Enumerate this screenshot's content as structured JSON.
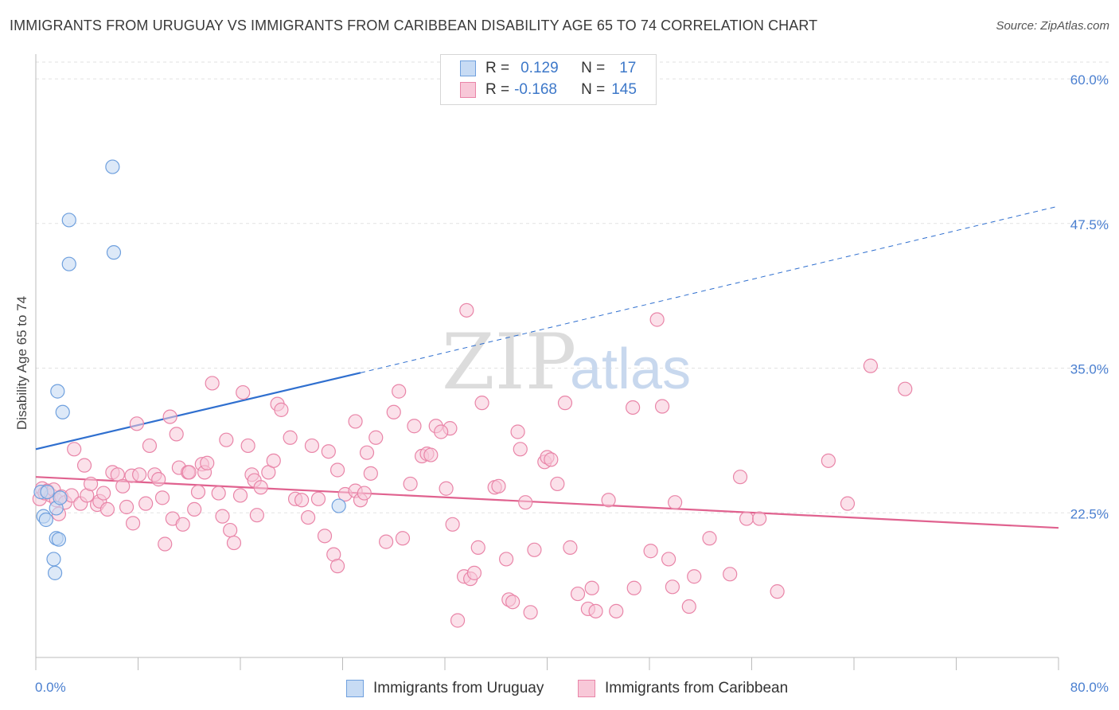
{
  "header": {
    "title": "IMMIGRANTS FROM URUGUAY VS IMMIGRANTS FROM CARIBBEAN DISABILITY AGE 65 TO 74 CORRELATION CHART",
    "source": "Source: ZipAtlas.com"
  },
  "watermark": {
    "zip": "ZIP",
    "atlas": "atlas"
  },
  "colors": {
    "blue": "#6fa0de",
    "blue_fill": "#c7dbf4",
    "blue_line": "#2f6fcf",
    "pink": "#e985a8",
    "pink_fill": "#f8c8d8",
    "pink_line": "#e0628f",
    "axis_text": "#4a7fd0",
    "grid": "#e2e2e2"
  },
  "legend": {
    "rows": [
      {
        "r_label": "R =",
        "r_value": "0.129",
        "n_label": "N =",
        "n_value": "17"
      },
      {
        "r_label": "R =",
        "r_value": "-0.168",
        "n_label": "N =",
        "n_value": "145"
      }
    ]
  },
  "bottom_legend": {
    "series1": "Immigrants from Uruguay",
    "series2": "Immigrants from Caribbean"
  },
  "chart_data": {
    "type": "scatter",
    "title": "IMMIGRANTS FROM URUGUAY VS IMMIGRANTS FROM CARIBBEAN DISABILITY AGE 65 TO 74 CORRELATION CHART",
    "xlabel": "",
    "ylabel": "Disability Age 65 to 74",
    "xlim": [
      0,
      80
    ],
    "ylim": [
      10,
      62
    ],
    "x_tick_labels": [
      "0.0%",
      "80.0%"
    ],
    "y_ticks": [
      22.5,
      35.0,
      47.5,
      60.0
    ],
    "y_tick_labels": [
      "22.5%",
      "35.0%",
      "47.5%",
      "60.0%"
    ],
    "grid": true,
    "series": [
      {
        "name": "Immigrants from Uruguay",
        "color": "#6fa0de",
        "points": [
          [
            0.4,
            24.3
          ],
          [
            0.6,
            22.2
          ],
          [
            0.8,
            21.9
          ],
          [
            0.9,
            24.3
          ],
          [
            1.4,
            18.5
          ],
          [
            1.5,
            17.3
          ],
          [
            1.6,
            22.9
          ],
          [
            1.6,
            20.3
          ],
          [
            1.7,
            33.0
          ],
          [
            1.8,
            20.2
          ],
          [
            1.9,
            23.8
          ],
          [
            2.1,
            31.2
          ],
          [
            2.6,
            47.8
          ],
          [
            2.6,
            44.0
          ],
          [
            6.0,
            52.4
          ],
          [
            6.1,
            45.0
          ],
          [
            23.7,
            23.1
          ]
        ],
        "trend": {
          "x": [
            0.0,
            25.4
          ],
          "y": [
            28.0,
            34.6
          ],
          "dashed_to": [
            80.0,
            49.0
          ]
        }
      },
      {
        "name": "Immigrants from Caribbean",
        "color": "#e985a8",
        "points": [
          [
            0.3,
            23.7
          ],
          [
            0.5,
            24.6
          ],
          [
            0.7,
            24.2
          ],
          [
            0.9,
            24.4
          ],
          [
            1.2,
            24.0
          ],
          [
            1.4,
            24.5
          ],
          [
            1.6,
            23.6
          ],
          [
            1.8,
            22.4
          ],
          [
            2.0,
            23.9
          ],
          [
            2.3,
            23.4
          ],
          [
            2.8,
            24.0
          ],
          [
            3.0,
            28.0
          ],
          [
            3.5,
            23.3
          ],
          [
            3.8,
            26.6
          ],
          [
            4.0,
            24.0
          ],
          [
            4.3,
            25.0
          ],
          [
            4.8,
            23.2
          ],
          [
            5.0,
            23.5
          ],
          [
            5.3,
            24.2
          ],
          [
            5.6,
            22.8
          ],
          [
            6.0,
            26.0
          ],
          [
            6.4,
            25.8
          ],
          [
            6.8,
            24.8
          ],
          [
            7.1,
            23.0
          ],
          [
            7.5,
            25.7
          ],
          [
            7.6,
            21.6
          ],
          [
            7.9,
            30.2
          ],
          [
            8.1,
            25.8
          ],
          [
            8.6,
            23.3
          ],
          [
            8.9,
            28.3
          ],
          [
            9.3,
            25.8
          ],
          [
            9.6,
            25.4
          ],
          [
            9.9,
            23.8
          ],
          [
            10.1,
            19.8
          ],
          [
            10.5,
            30.8
          ],
          [
            10.7,
            22.0
          ],
          [
            11.0,
            29.3
          ],
          [
            11.2,
            26.4
          ],
          [
            11.5,
            21.5
          ],
          [
            11.9,
            26.0
          ],
          [
            12.0,
            26.0
          ],
          [
            12.4,
            22.8
          ],
          [
            12.7,
            24.3
          ],
          [
            13.0,
            26.7
          ],
          [
            13.2,
            26.0
          ],
          [
            13.4,
            26.8
          ],
          [
            13.8,
            33.7
          ],
          [
            14.3,
            24.2
          ],
          [
            14.6,
            22.2
          ],
          [
            14.9,
            28.8
          ],
          [
            15.2,
            21.0
          ],
          [
            15.5,
            19.9
          ],
          [
            16.0,
            24.0
          ],
          [
            16.2,
            32.9
          ],
          [
            16.6,
            28.3
          ],
          [
            16.9,
            25.8
          ],
          [
            17.1,
            25.3
          ],
          [
            17.3,
            22.3
          ],
          [
            17.6,
            24.7
          ],
          [
            18.2,
            26.0
          ],
          [
            18.6,
            27.0
          ],
          [
            18.9,
            31.9
          ],
          [
            19.2,
            31.4
          ],
          [
            19.9,
            29.0
          ],
          [
            20.3,
            23.7
          ],
          [
            20.8,
            23.6
          ],
          [
            21.3,
            22.1
          ],
          [
            21.6,
            28.3
          ],
          [
            22.1,
            23.7
          ],
          [
            22.6,
            20.5
          ],
          [
            22.9,
            27.8
          ],
          [
            23.3,
            18.9
          ],
          [
            23.6,
            26.2
          ],
          [
            23.6,
            17.9
          ],
          [
            24.2,
            24.1
          ],
          [
            25.0,
            24.4
          ],
          [
            25.0,
            30.4
          ],
          [
            25.4,
            23.6
          ],
          [
            25.7,
            24.2
          ],
          [
            25.9,
            27.7
          ],
          [
            26.2,
            25.9
          ],
          [
            26.6,
            29.0
          ],
          [
            27.4,
            20.0
          ],
          [
            28.0,
            31.2
          ],
          [
            28.4,
            33.0
          ],
          [
            28.7,
            20.3
          ],
          [
            29.3,
            25.0
          ],
          [
            29.6,
            30.0
          ],
          [
            30.2,
            27.4
          ],
          [
            30.6,
            27.6
          ],
          [
            30.9,
            27.5
          ],
          [
            31.3,
            30.0
          ],
          [
            32.1,
            24.6
          ],
          [
            32.4,
            29.8
          ],
          [
            32.6,
            21.5
          ],
          [
            33.0,
            13.2
          ],
          [
            33.5,
            17.0
          ],
          [
            34.0,
            16.8
          ],
          [
            34.3,
            17.3
          ],
          [
            34.6,
            19.5
          ],
          [
            34.9,
            32.0
          ],
          [
            35.9,
            24.7
          ],
          [
            36.2,
            24.8
          ],
          [
            36.8,
            18.5
          ],
          [
            37.0,
            15.0
          ],
          [
            37.3,
            14.8
          ],
          [
            37.7,
            29.5
          ],
          [
            37.9,
            28.0
          ],
          [
            38.3,
            23.4
          ],
          [
            38.7,
            13.9
          ],
          [
            39.0,
            19.3
          ],
          [
            39.8,
            26.9
          ],
          [
            40.0,
            27.3
          ],
          [
            40.3,
            27.1
          ],
          [
            40.8,
            25.0
          ],
          [
            41.4,
            32.0
          ],
          [
            41.8,
            19.5
          ],
          [
            42.4,
            15.5
          ],
          [
            43.2,
            14.2
          ],
          [
            43.5,
            16.0
          ],
          [
            43.8,
            14.0
          ],
          [
            44.8,
            23.6
          ],
          [
            45.4,
            14.0
          ],
          [
            46.7,
            31.6
          ],
          [
            46.8,
            16.0
          ],
          [
            48.1,
            19.2
          ],
          [
            48.6,
            39.2
          ],
          [
            49.0,
            31.7
          ],
          [
            49.5,
            18.5
          ],
          [
            49.8,
            16.1
          ],
          [
            50.0,
            23.4
          ],
          [
            51.1,
            14.4
          ],
          [
            51.5,
            17.0
          ],
          [
            52.7,
            20.3
          ],
          [
            54.3,
            17.2
          ],
          [
            55.1,
            25.6
          ],
          [
            55.6,
            22.0
          ],
          [
            56.6,
            22.0
          ],
          [
            58.0,
            15.7
          ],
          [
            62.0,
            27.0
          ],
          [
            63.5,
            23.3
          ],
          [
            65.3,
            35.2
          ],
          [
            68.0,
            33.2
          ],
          [
            33.7,
            40.0
          ],
          [
            31.7,
            29.5
          ]
        ],
        "trend": {
          "x": [
            0.0,
            80.0
          ],
          "y": [
            25.6,
            21.2
          ]
        }
      }
    ]
  }
}
